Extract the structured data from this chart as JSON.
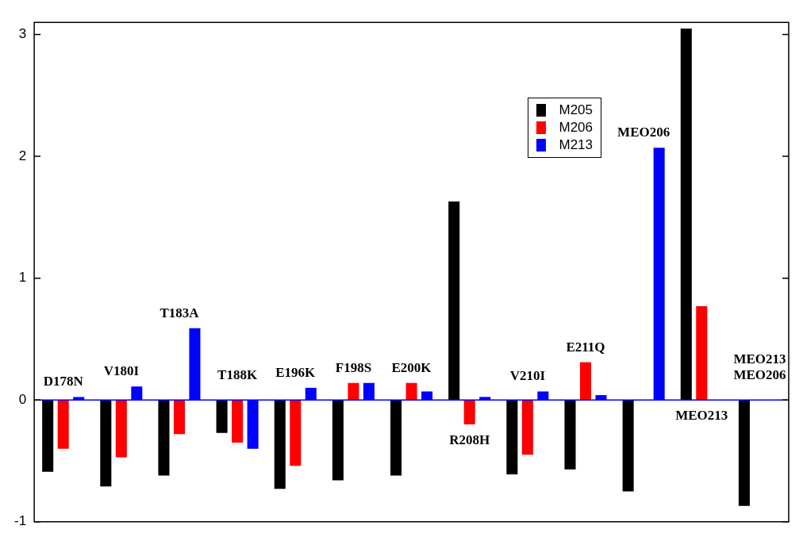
{
  "chart_data": {
    "type": "bar",
    "categories": [
      "D178N",
      "V180I",
      "T183A",
      "T188K",
      "E196K",
      "F198S",
      "E200K",
      "R208H",
      "V210I",
      "E211Q",
      "MEO206",
      "MEO213",
      "MEO213\nMEO206"
    ],
    "series": [
      {
        "name": "M205",
        "color": "#000000",
        "values": [
          -0.59,
          -0.71,
          -0.62,
          -0.27,
          -0.73,
          -0.66,
          -0.62,
          1.63,
          -0.61,
          -0.57,
          -0.75,
          3.05,
          -0.87
        ]
      },
      {
        "name": "M206",
        "color": "#ff0000",
        "values": [
          -0.4,
          -0.47,
          -0.28,
          -0.35,
          -0.54,
          0.14,
          0.14,
          -0.2,
          -0.45,
          0.31,
          null,
          0.77,
          null
        ]
      },
      {
        "name": "M213",
        "color": "#0000ff",
        "values": [
          0.025,
          0.11,
          0.59,
          -0.4,
          0.1,
          0.14,
          0.07,
          0.025,
          0.07,
          0.04,
          2.07,
          null,
          null
        ]
      }
    ],
    "ylim": [
      -1,
      3.1
    ],
    "yticks": [
      -1,
      0,
      1,
      2,
      3
    ],
    "grid": false,
    "legend": "top right",
    "ref_lines": [
      {
        "axis": "y",
        "value": 0,
        "color": "#0000ff"
      }
    ]
  }
}
